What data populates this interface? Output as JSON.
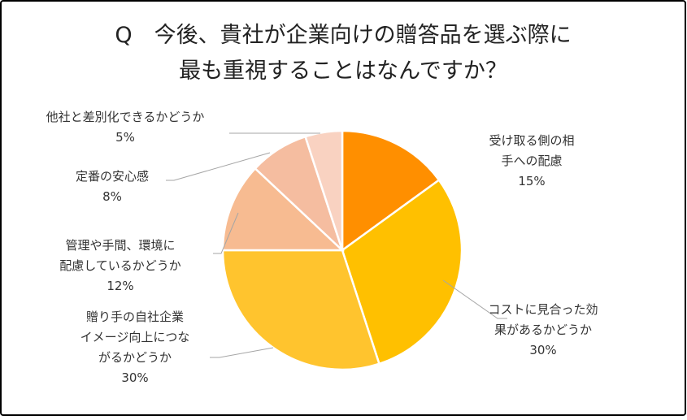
{
  "chart_data": {
    "type": "pie",
    "title_lines": [
      "Q　今後、貴社が企業向けの贈答品を選ぶ際に",
      "最も重視することはなんですか？"
    ],
    "slices": [
      {
        "label_lines": [
          "受け取る側の相",
          "手への配慮"
        ],
        "value": 15,
        "value_label": "15%",
        "color": "#FF8F00"
      },
      {
        "label_lines": [
          "コストに見合った効",
          "果があるかどうか"
        ],
        "value": 30,
        "value_label": "30%",
        "color": "#FFC000"
      },
      {
        "label_lines": [
          "贈り手の自社企業",
          "イメージ向上につな",
          "がるかどうか"
        ],
        "value": 30,
        "value_label": "30%",
        "color": "#FFC42E"
      },
      {
        "label_lines": [
          "管理や手間、環境に",
          "配慮しているかどうか"
        ],
        "value": 12,
        "value_label": "12%",
        "color": "#F7BB91"
      },
      {
        "label_lines": [
          "定番の安心感"
        ],
        "value": 8,
        "value_label": "8%",
        "color": "#F5BDA0"
      },
      {
        "label_lines": [
          "他社と差別化できるかどうか"
        ],
        "value": 5,
        "value_label": "5%",
        "color": "#F9D2C1"
      }
    ],
    "start": "12 o'clock",
    "direction": "clockwise",
    "legend": "none",
    "colors": {
      "border": "#000000",
      "slice_edge": "#ffffff",
      "leader": "#a6a6a6"
    }
  }
}
